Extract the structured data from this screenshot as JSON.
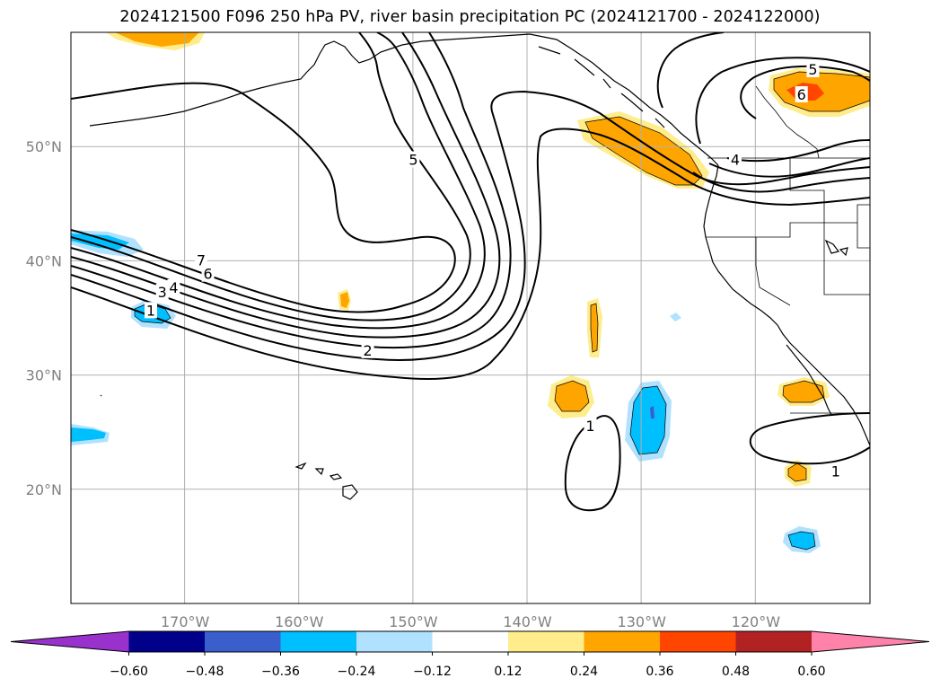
{
  "title": "2024121500 F096 250 hPa PV, river basin precipitation PC (2024121700 - 2024122000)",
  "map": {
    "lon_range": [
      -180,
      -110
    ],
    "lat_range": [
      10,
      60
    ],
    "lon_ticks": [
      {
        "lon": -170,
        "label": "170°W"
      },
      {
        "lon": -160,
        "label": "160°W"
      },
      {
        "lon": -150,
        "label": "150°W"
      },
      {
        "lon": -140,
        "label": "140°W"
      },
      {
        "lon": -130,
        "label": "130°W"
      },
      {
        "lon": -120,
        "label": "120°W"
      }
    ],
    "lat_ticks": [
      {
        "lat": 50,
        "label": "50°N"
      },
      {
        "lat": 40,
        "label": "40°N"
      },
      {
        "lat": 30,
        "label": "30°N"
      },
      {
        "lat": 20,
        "label": "20°N"
      }
    ],
    "gridlines": true
  },
  "pv_contour_labels": [
    {
      "text": "7",
      "lon": -168.6,
      "lat": 40.0
    },
    {
      "text": "6",
      "lon": -168.0,
      "lat": 38.8
    },
    {
      "text": "4",
      "lon": -171.0,
      "lat": 37.6
    },
    {
      "text": "3",
      "lon": -172.0,
      "lat": 37.2
    },
    {
      "text": "1",
      "lon": -173.0,
      "lat": 35.6
    },
    {
      "text": "2",
      "lon": -154.0,
      "lat": 32.1
    },
    {
      "text": "5",
      "lon": -150.0,
      "lat": 48.8
    },
    {
      "text": "5",
      "lon": -115.0,
      "lat": 56.7
    },
    {
      "text": "6",
      "lon": -116.0,
      "lat": 54.5
    },
    {
      "text": "4",
      "lon": -121.8,
      "lat": 48.8
    },
    {
      "text": "1",
      "lon": -134.5,
      "lat": 25.5
    },
    {
      "text": "1",
      "lon": -113.0,
      "lat": 21.5
    }
  ],
  "colorbar": {
    "ticks": [
      "−0.60",
      "−0.48",
      "−0.36",
      "−0.24",
      "−0.12",
      "0.12",
      "0.24",
      "0.36",
      "0.48",
      "0.60"
    ],
    "colors": [
      "#9932CC",
      "#00008B",
      "#3A5FCD",
      "#00BFFF",
      "#B0E2FF",
      "#FFFFFF",
      "#FFEC8B",
      "#FFA500",
      "#FF4500",
      "#B22222",
      "#FF82AB"
    ]
  }
}
